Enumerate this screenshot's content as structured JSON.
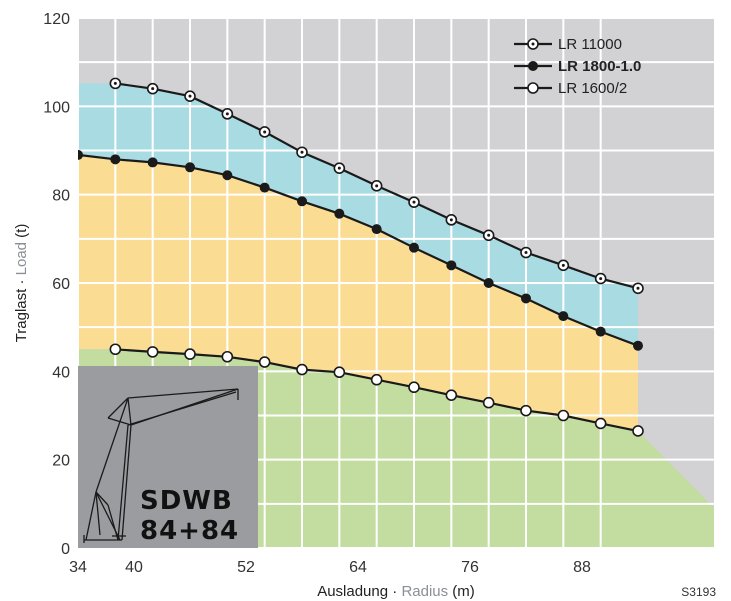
{
  "chart_data": {
    "type": "line",
    "title": "",
    "xlabel_main": "Ausladung",
    "xlabel_sep": " · ",
    "xlabel_alt": "Radius",
    "xlabel_unit": " (m)",
    "ylabel_main": "Traglast",
    "ylabel_sep": " · ",
    "ylabel_alt": "Load",
    "ylabel_unit": " (t)",
    "xlim": [
      34,
      92
    ],
    "ylim": [
      0,
      120
    ],
    "xticks": [
      34,
      40,
      52,
      64,
      76,
      88
    ],
    "yticks": [
      0,
      20,
      40,
      60,
      80,
      100,
      120
    ],
    "grid": true,
    "legend_position": "top-right",
    "series": [
      {
        "name": "LR 11000",
        "marker": "dotted-circle",
        "bold": false,
        "x": [
          38,
          42,
          46,
          50,
          54,
          58,
          62,
          66,
          70,
          74,
          78,
          82,
          86,
          90,
          94
        ],
        "y": [
          105.2,
          104.0,
          102.3,
          98.3,
          94.2,
          89.6,
          86.0,
          82.0,
          78.3,
          74.3,
          70.8,
          66.9,
          64.0,
          61.0,
          58.8
        ]
      },
      {
        "name": "LR 1800-1.0",
        "marker": "filled-circle",
        "bold": true,
        "x": [
          34,
          38,
          42,
          46,
          50,
          54,
          58,
          62,
          66,
          70,
          74,
          78,
          82,
          86,
          90,
          94
        ],
        "y": [
          89.0,
          88.0,
          87.3,
          86.2,
          84.4,
          81.6,
          78.5,
          75.7,
          72.2,
          68.0,
          64.0,
          60.0,
          56.5,
          52.5,
          49.0,
          45.8
        ]
      },
      {
        "name": "LR 1600/2",
        "marker": "open-circle",
        "bold": false,
        "x": [
          38,
          42,
          46,
          50,
          54,
          58,
          62,
          66,
          70,
          74,
          78,
          82,
          86,
          90,
          94
        ],
        "y": [
          45.0,
          44.4,
          43.9,
          43.3,
          42.1,
          40.4,
          39.8,
          38.1,
          36.4,
          34.6,
          32.9,
          31.1,
          30.0,
          28.2,
          26.5
        ]
      }
    ],
    "fill_colors": {
      "top": "#d2d2d4",
      "blue": "#a9dbe3",
      "yellow": "#fbdc93",
      "green": "#c3dca0",
      "grid": "#ffffff",
      "line": "#1a1a1a"
    },
    "inset": {
      "line1": "SDWB",
      "line2": "84+84",
      "background": "#9a9ca0"
    },
    "code": "S3193"
  }
}
